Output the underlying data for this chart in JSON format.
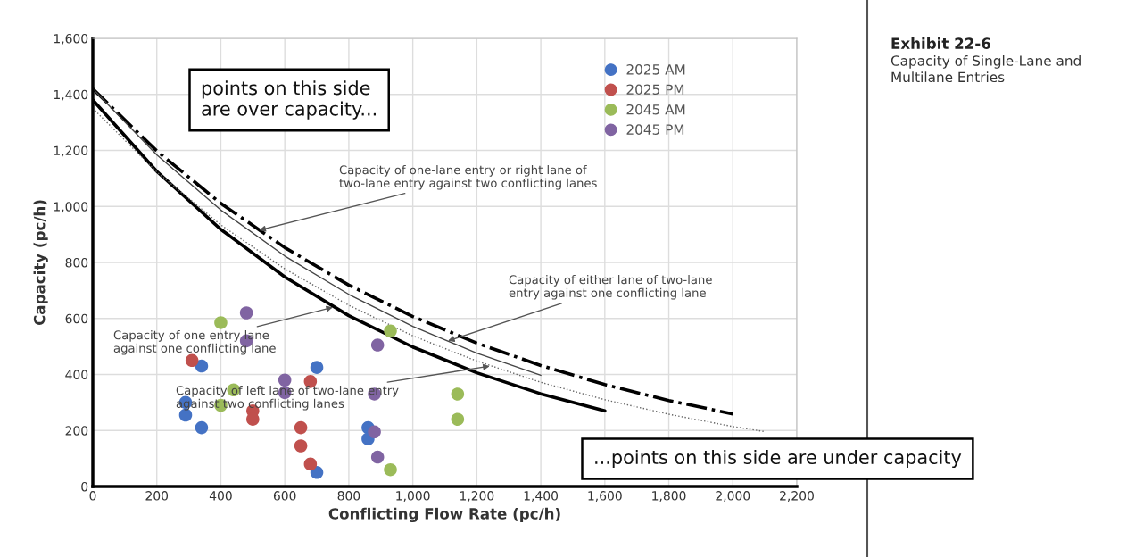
{
  "chart_data": {
    "type": "scatter",
    "title": "Exhibit 22-6",
    "subtitle": "Capacity of Single-Lane and Multilane Entries",
    "xlabel": "Conflicting Flow Rate (pc/h)",
    "ylabel": "Capacity (pc/h)",
    "xlim": [
      0,
      2200
    ],
    "ylim": [
      0,
      1600
    ],
    "xticks": [
      {
        "value": 0,
        "label": "0"
      },
      {
        "value": 200,
        "label": "200"
      },
      {
        "value": 400,
        "label": "400"
      },
      {
        "value": 600,
        "label": "600"
      },
      {
        "value": 800,
        "label": "800"
      },
      {
        "value": 1000,
        "label": "1,000"
      },
      {
        "value": 1200,
        "label": "1,200"
      },
      {
        "value": 1400,
        "label": "1,400"
      },
      {
        "value": 1600,
        "label": "1,600"
      },
      {
        "value": 1800,
        "label": "1,800"
      },
      {
        "value": 2000,
        "label": "2,000"
      },
      {
        "value": 2200,
        "label": "2,200"
      }
    ],
    "yticks": [
      {
        "value": 0,
        "label": "0"
      },
      {
        "value": 200,
        "label": "200"
      },
      {
        "value": 400,
        "label": "400"
      },
      {
        "value": 600,
        "label": "600"
      },
      {
        "value": 800,
        "label": "800"
      },
      {
        "value": 1000,
        "label": "1,000"
      },
      {
        "value": 1200,
        "label": "1,200"
      },
      {
        "value": 1400,
        "label": "1,400"
      },
      {
        "value": 1600,
        "label": "1,600"
      }
    ],
    "grid": true,
    "legend": "top right",
    "marker": "circle",
    "series": [
      {
        "type": "line",
        "marker": "none",
        "color": "#000000",
        "line_style": "solid",
        "x": [
          0,
          200,
          400,
          600,
          800,
          1000,
          1200,
          1400,
          1600
        ],
        "values": [
          1380,
          1125,
          918,
          748,
          610,
          498,
          406,
          331,
          270
        ]
      },
      {
        "type": "line",
        "marker": "none",
        "color": "#000000",
        "line_style": "dashdot",
        "x": [
          0,
          200,
          400,
          600,
          800,
          1000,
          1200,
          1400,
          1600,
          1800,
          2000
        ],
        "values": [
          1420,
          1198,
          1011,
          853,
          719,
          607,
          512,
          432,
          364,
          307,
          259
        ]
      },
      {
        "type": "line",
        "marker": "none",
        "color": "#444444",
        "line_style": "solid",
        "x": [
          0,
          200,
          400,
          600,
          800,
          1000,
          1200,
          1400
        ],
        "values": [
          1420,
          1184,
          987,
          823,
          686,
          572,
          476,
          397
        ]
      },
      {
        "type": "line",
        "marker": "none",
        "color": "#666666",
        "line_style": "dotted",
        "x": [
          0,
          200,
          400,
          600,
          800,
          1000,
          1200,
          1400,
          1600,
          1800,
          2000,
          2100
        ],
        "values": [
          1350,
          1123,
          934,
          777,
          647,
          538,
          448,
          372,
          310,
          258,
          214,
          196
        ]
      },
      {
        "name": "2025 AM",
        "color": "#4472c4",
        "x": [
          290,
          290,
          340,
          340,
          700,
          700,
          860,
          860
        ],
        "values": [
          300,
          255,
          210,
          430,
          425,
          50,
          210,
          170
        ]
      },
      {
        "name": "2025 PM",
        "color": "#c0504d",
        "x": [
          310,
          500,
          500,
          680,
          650,
          650,
          680
        ],
        "values": [
          450,
          270,
          240,
          375,
          210,
          145,
          80
        ]
      },
      {
        "name": "2045 AM",
        "color": "#9bbb59",
        "x": [
          400,
          440,
          400,
          930,
          1140,
          1140,
          930
        ],
        "values": [
          585,
          345,
          290,
          555,
          330,
          240,
          60
        ]
      },
      {
        "name": "2045 PM",
        "color": "#8064a2",
        "x": [
          480,
          480,
          600,
          600,
          890,
          880,
          880,
          890
        ],
        "values": [
          620,
          520,
          380,
          335,
          505,
          330,
          195,
          105
        ]
      }
    ],
    "annotations": [
      {
        "text": "Capacity of one-lane entry or right lane of\ntwo-lane entry against two conflicting lanes",
        "x": 520,
        "y": 915
      },
      {
        "text": "Capacity of either lane of two-lane\nentry against one conflicting lane",
        "x": 1110,
        "y": 520
      },
      {
        "text": "Capacity of one entry lane\nagainst one conflicting lane",
        "x": 750,
        "y": 640
      },
      {
        "text": "Capacity of left lane of two-lane entry\nagainst two conflicting lanes",
        "x": 1240,
        "y": 430
      },
      "points on this side\nare over capacity...",
      "...points on this side are under capacity"
    ]
  }
}
